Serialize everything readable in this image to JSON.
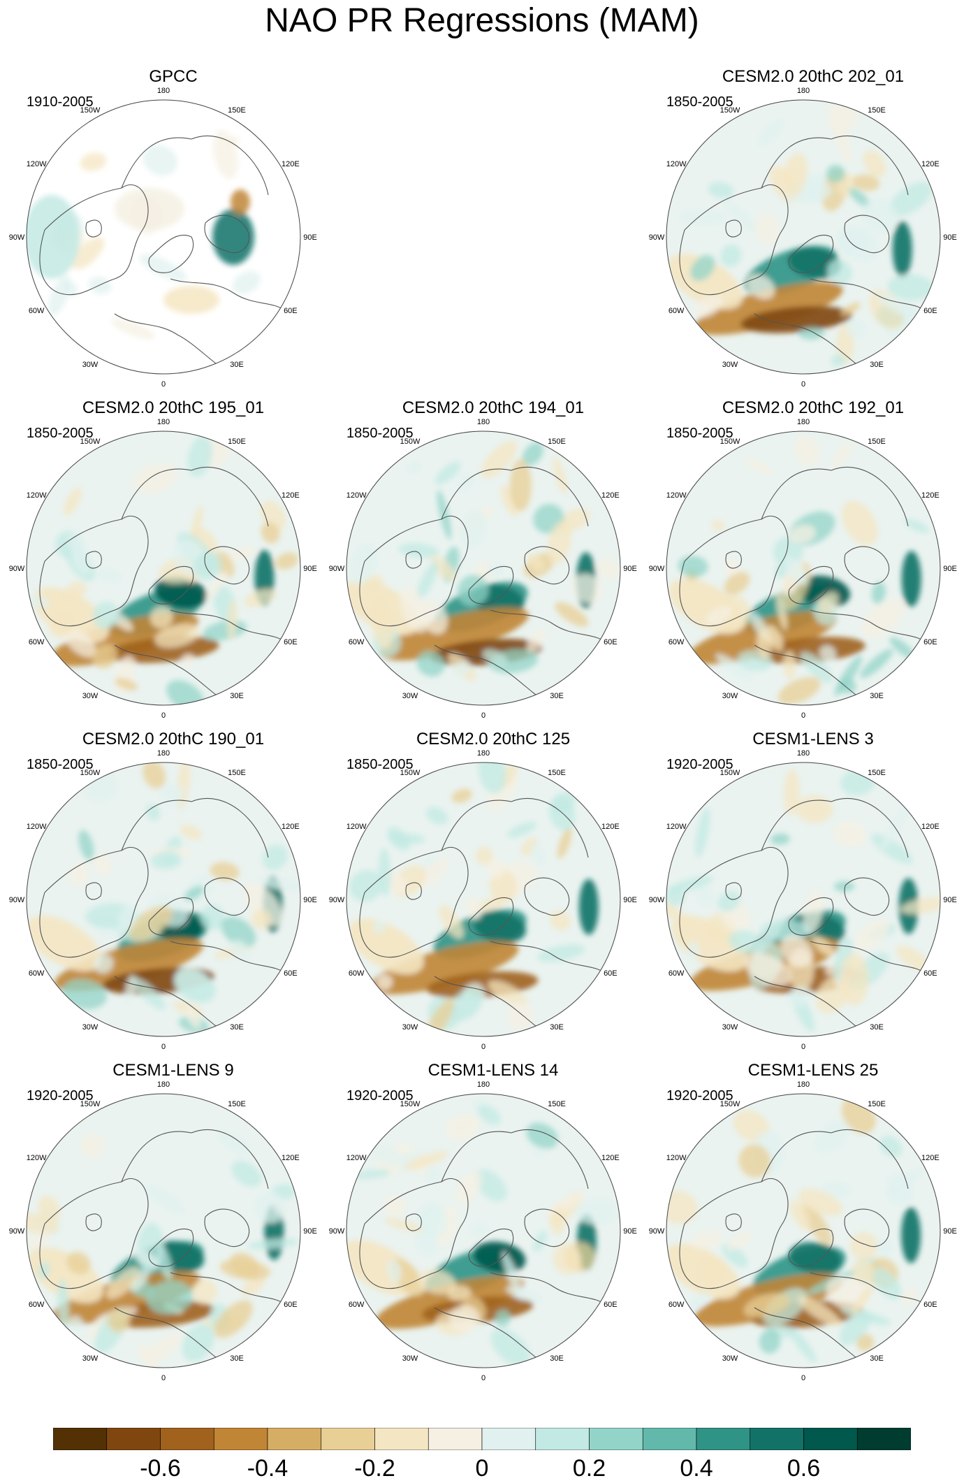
{
  "figure": {
    "title": "NAO PR Regressions (MAM)"
  },
  "panels": [
    {
      "id": "gpcc",
      "title": "GPCC",
      "years": "1910-2005",
      "seed": 11,
      "data_coverage": "land-only"
    },
    {
      "id": "cesm2-202",
      "title": "CESM2.0 20thC 202_01",
      "years": "1850-2005",
      "seed": 23,
      "data_coverage": "global"
    },
    {
      "id": "cesm2-195",
      "title": "CESM2.0 20thC 195_01",
      "years": "1850-2005",
      "seed": 37,
      "data_coverage": "global"
    },
    {
      "id": "cesm2-194",
      "title": "CESM2.0 20thC 194_01",
      "years": "1850-2005",
      "seed": 41,
      "data_coverage": "global"
    },
    {
      "id": "cesm2-192",
      "title": "CESM2.0 20thC 192_01",
      "years": "1850-2005",
      "seed": 53,
      "data_coverage": "global"
    },
    {
      "id": "cesm2-190",
      "title": "CESM2.0 20thC 190_01",
      "years": "1850-2005",
      "seed": 67,
      "data_coverage": "global"
    },
    {
      "id": "cesm2-125",
      "title": "CESM2.0 20thC 125",
      "years": "1850-2005",
      "seed": 71,
      "data_coverage": "global"
    },
    {
      "id": "lens-3",
      "title": "CESM1-LENS 3",
      "years": "1920-2005",
      "seed": 83,
      "data_coverage": "global"
    },
    {
      "id": "lens-9",
      "title": "CESM1-LENS 9",
      "years": "1920-2005",
      "seed": 97,
      "data_coverage": "global"
    },
    {
      "id": "lens-14",
      "title": "CESM1-LENS 14",
      "years": "1920-2005",
      "seed": 101,
      "data_coverage": "global"
    },
    {
      "id": "lens-25",
      "title": "CESM1-LENS 25",
      "years": "1920-2005",
      "seed": 113,
      "data_coverage": "global"
    }
  ],
  "longitude_labels": [
    "180",
    "150E",
    "120E",
    "90E",
    "60E",
    "30E",
    "0",
    "30W",
    "60W",
    "90W",
    "120W",
    "150W"
  ],
  "colorbar": {
    "colors": [
      "#543005",
      "#7f470f",
      "#a0621c",
      "#c08535",
      "#d5ad64",
      "#e8cf96",
      "#f4e6c2",
      "#f5f0e3",
      "#e0f1ef",
      "#c2e9e3",
      "#93d4c8",
      "#62b9ab",
      "#2f9386",
      "#137267",
      "#01584c",
      "#003c30"
    ],
    "labels": [
      "-0.6",
      "-0.4",
      "-0.2",
      "0",
      "0.2",
      "0.4",
      "0.6"
    ]
  }
}
